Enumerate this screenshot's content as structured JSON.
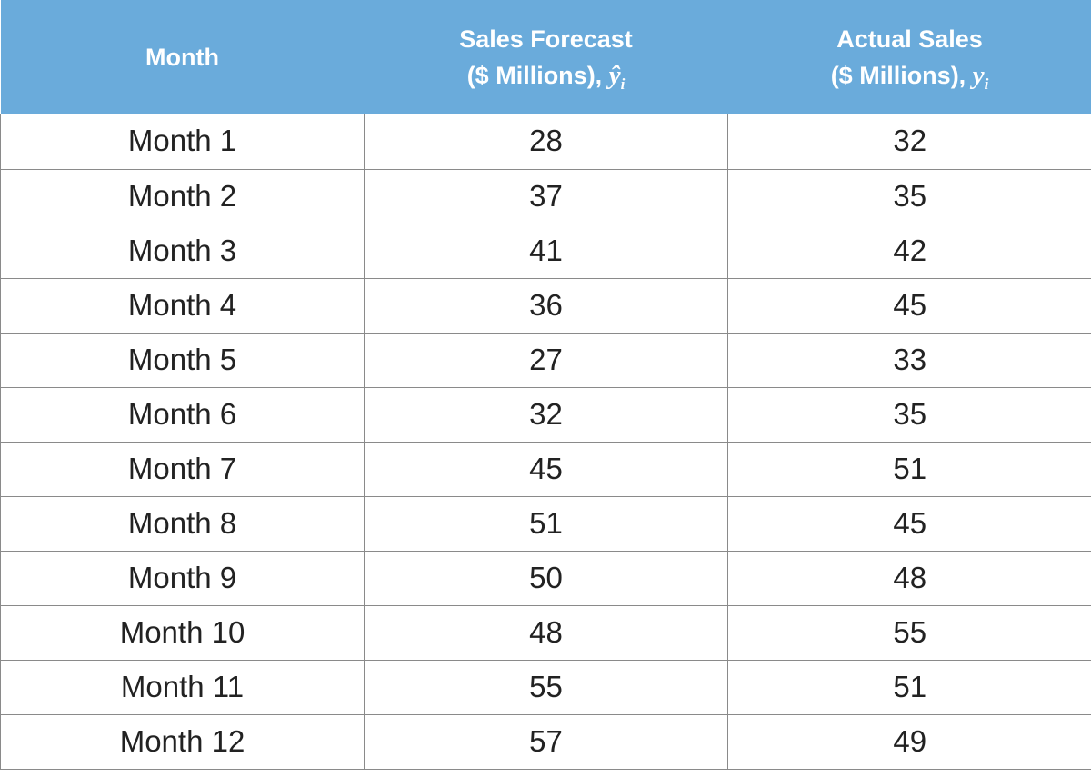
{
  "table": {
    "header": {
      "month": "Month",
      "forecast_line1": "Sales Forecast",
      "forecast_line2": "($ Millions),",
      "forecast_symbol": "ŷ",
      "forecast_subscript": "i",
      "actual_line1": "Actual Sales",
      "actual_line2": "($ Millions),",
      "actual_symbol": "y",
      "actual_subscript": "i"
    },
    "rows": [
      {
        "month": "Month 1",
        "forecast": "28",
        "actual": "32"
      },
      {
        "month": "Month 2",
        "forecast": "37",
        "actual": "35"
      },
      {
        "month": "Month 3",
        "forecast": "41",
        "actual": "42"
      },
      {
        "month": "Month 4",
        "forecast": "36",
        "actual": "45"
      },
      {
        "month": "Month 5",
        "forecast": "27",
        "actual": "33"
      },
      {
        "month": "Month 6",
        "forecast": "32",
        "actual": "35"
      },
      {
        "month": "Month 7",
        "forecast": "45",
        "actual": "51"
      },
      {
        "month": "Month 8",
        "forecast": "51",
        "actual": "45"
      },
      {
        "month": "Month 9",
        "forecast": "50",
        "actual": "48"
      },
      {
        "month": "Month 10",
        "forecast": "48",
        "actual": "55"
      },
      {
        "month": "Month 11",
        "forecast": "55",
        "actual": "51"
      },
      {
        "month": "Month 12",
        "forecast": "57",
        "actual": "49"
      }
    ]
  },
  "colors": {
    "header_background": "#6aabdb",
    "header_text": "#ffffff",
    "body_text": "#222222",
    "grid_line": "#8a8a8a"
  }
}
